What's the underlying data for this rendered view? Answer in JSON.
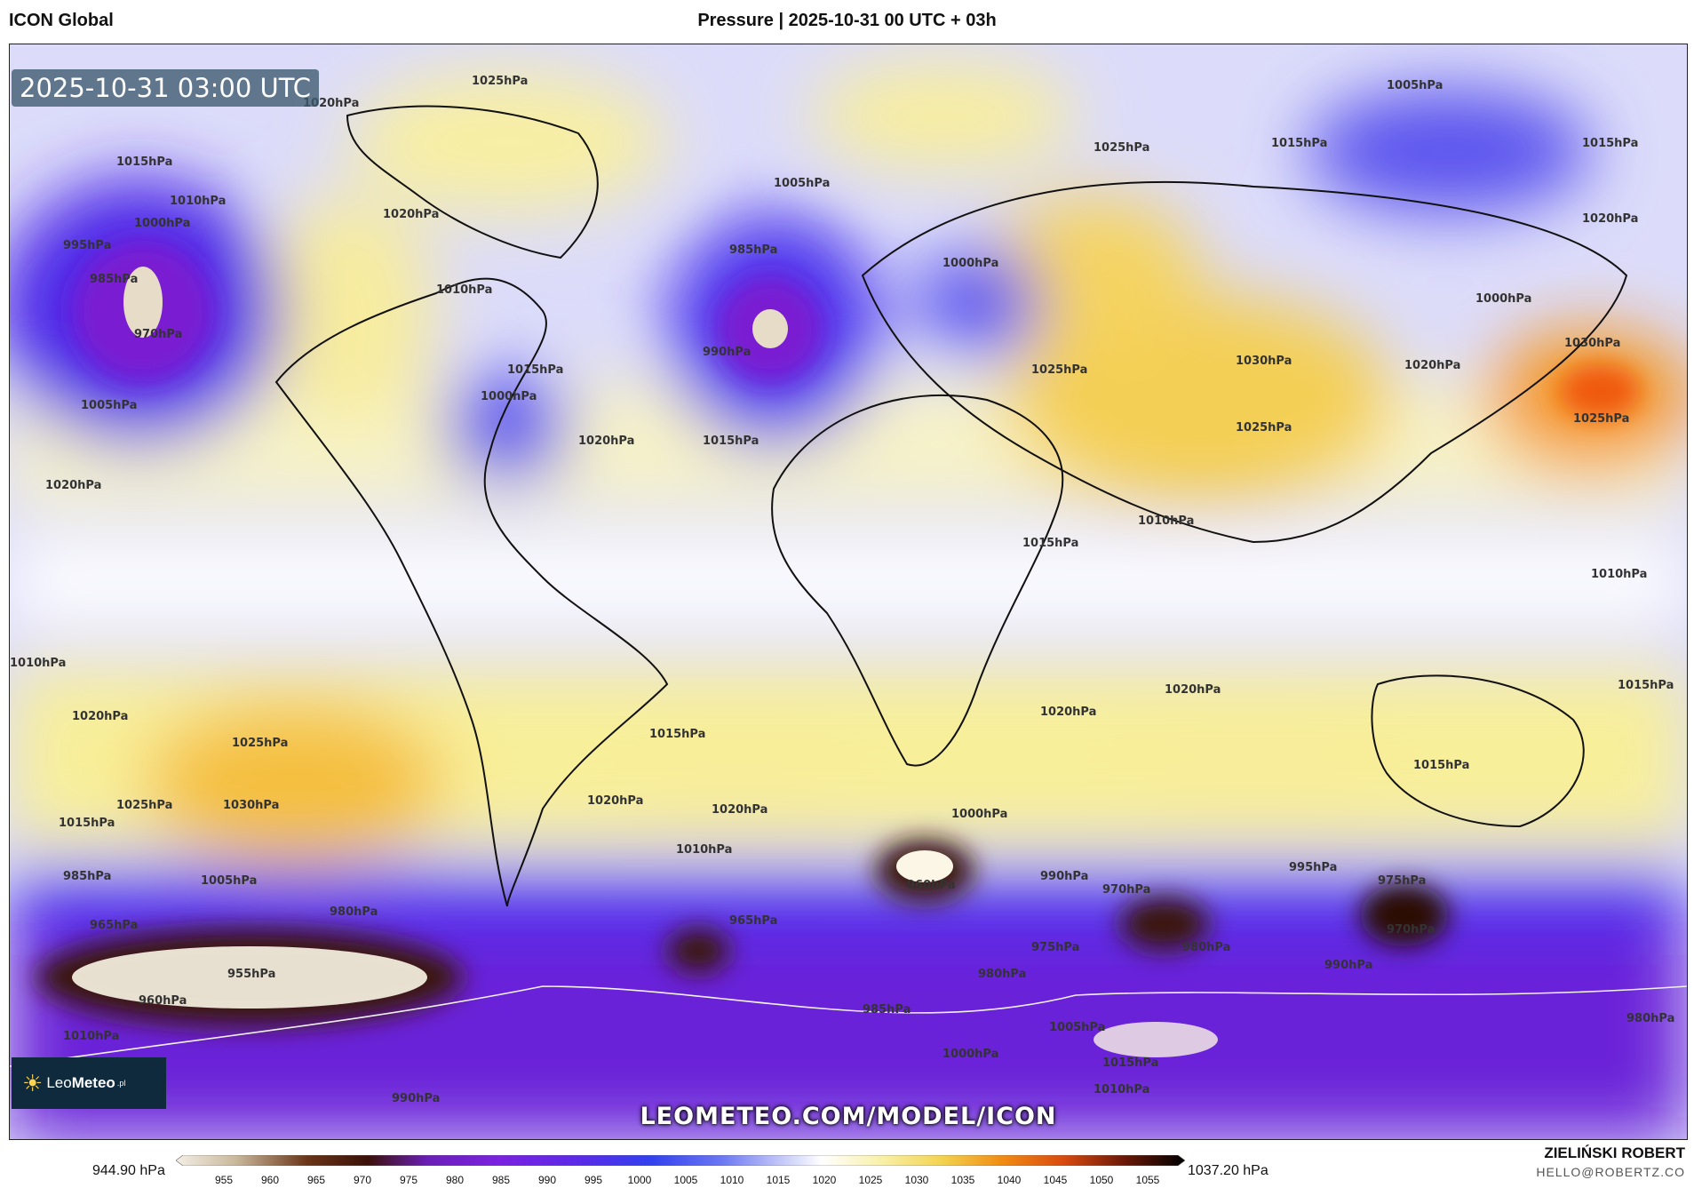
{
  "header": {
    "model": "ICON Global",
    "title": "Pressure | 2025-10-31 00 UTC + 03h"
  },
  "map": {
    "timestamp": "2025-10-31 03:00 UTC",
    "site": "LEOMETEO.COM/MODEL/ICON",
    "logo": {
      "text_a": "Leo",
      "text_b": "Meteo",
      "suffix": ".pl"
    },
    "isobar_labels": [
      "1020hPa",
      "1025hPa",
      "1015hPa",
      "1010hPa",
      "1000hPa",
      "995hPa",
      "985hPa",
      "970hPa",
      "960hPa",
      "965hPa",
      "975hPa",
      "990hPa",
      "1005hPa",
      "1030hPa",
      "980hPa",
      "955hPa"
    ],
    "colors": {
      "deep_low": "#4a1e0e",
      "low": "#7a1fd1",
      "mid_low": "#3d3af0",
      "neutral": "#ffffff",
      "high": "#f5e55a",
      "very_high": "#f07a10"
    }
  },
  "colorbar": {
    "min_label": "944.90 hPa",
    "max_label": "1037.20 hPa",
    "ticks": [
      "955",
      "960",
      "965",
      "970",
      "975",
      "980",
      "985",
      "990",
      "995",
      "1000",
      "1005",
      "1010",
      "1015",
      "1020",
      "1025",
      "1030",
      "1035",
      "1040",
      "1045",
      "1050",
      "1055"
    ]
  },
  "credits": {
    "author": "ZIELIŃSKI ROBERT",
    "email": "HELLO@ROBERTZ.CO"
  }
}
